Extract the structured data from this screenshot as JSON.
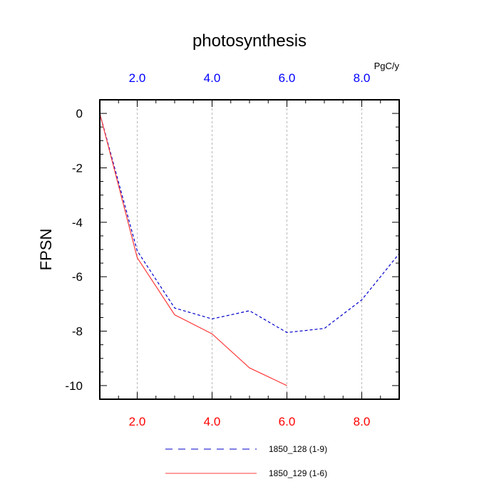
{
  "chart_data": {
    "type": "line",
    "title": "photosynthesis",
    "units": "PgC/y",
    "ylabel": "FPSN",
    "xlim": [
      1,
      9
    ],
    "ylim": [
      -10.5,
      0.5
    ],
    "x_ticks": [
      "2.0",
      "4.0",
      "6.0",
      "8.0"
    ],
    "x_tick_values": [
      2,
      4,
      6,
      8
    ],
    "y_ticks": [
      "0",
      "-2",
      "-4",
      "-6",
      "-8",
      "-10"
    ],
    "y_tick_values": [
      0,
      -2,
      -4,
      -6,
      -8,
      -10
    ],
    "grid": "vertical dashed at major x ticks",
    "top_axis_color": "#0000ff",
    "bottom_axis_color": "#ff0000",
    "series": [
      {
        "name": "1850_128 (1-9)",
        "color": "#0000cc",
        "style": "dashed",
        "x": [
          1,
          2,
          3,
          4,
          5,
          6,
          7,
          8,
          9
        ],
        "y": [
          0,
          -5.05,
          -7.15,
          -7.55,
          -7.25,
          -8.05,
          -7.9,
          -6.85,
          -5.15
        ]
      },
      {
        "name": "1850_129 (1-6)",
        "color": "#ff3b3b",
        "style": "solid",
        "x": [
          1,
          2,
          3,
          4,
          5,
          6
        ],
        "y": [
          0,
          -5.3,
          -7.4,
          -8.1,
          -9.35,
          -10.0
        ]
      }
    ]
  }
}
